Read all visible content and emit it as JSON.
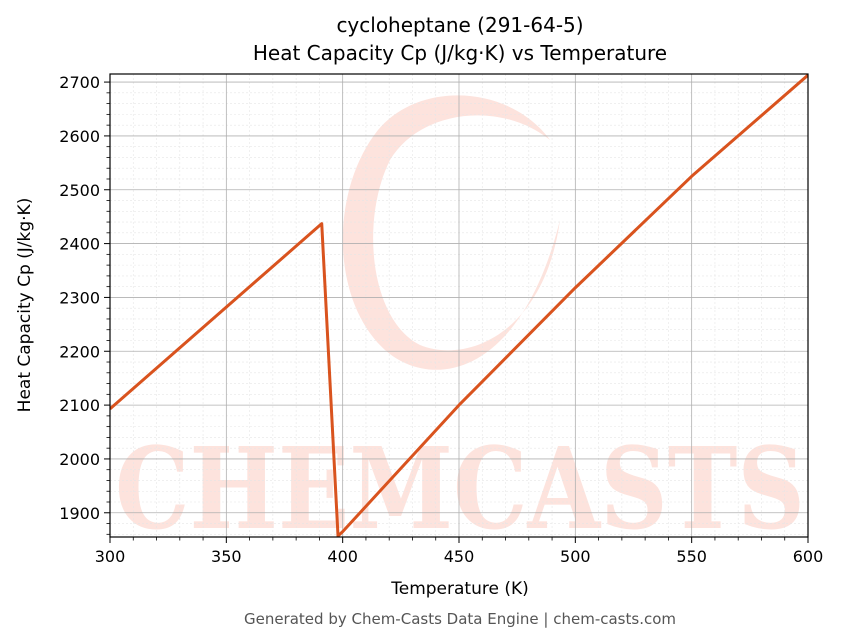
{
  "chart_data": {
    "type": "line",
    "title": "cycloheptane (291-64-5)",
    "subtitle": "Heat Capacity Cp (J/kg·K) vs Temperature",
    "xlabel": "Temperature (K)",
    "ylabel": "Heat Capacity Cp (J/kg·K)",
    "xlim": [
      300,
      600
    ],
    "ylim": [
      1855,
      2715
    ],
    "x_ticks": [
      300,
      350,
      400,
      450,
      500,
      550,
      600
    ],
    "y_ticks": [
      1900,
      2000,
      2100,
      2200,
      2300,
      2400,
      2500,
      2600,
      2700
    ],
    "grid": true,
    "series": [
      {
        "color": "#d9531e",
        "points": [
          [
            300,
            2093
          ],
          [
            391,
            2437
          ],
          [
            398,
            1857
          ],
          [
            400,
            1865
          ],
          [
            450,
            2100
          ],
          [
            500,
            2318
          ],
          [
            550,
            2525
          ],
          [
            600,
            2713
          ]
        ]
      }
    ],
    "footer": "Generated by Chem-Casts Data Engine | chem-casts.com",
    "watermark": "CHEMCASTS",
    "watermark_color": "#fde3dd"
  }
}
